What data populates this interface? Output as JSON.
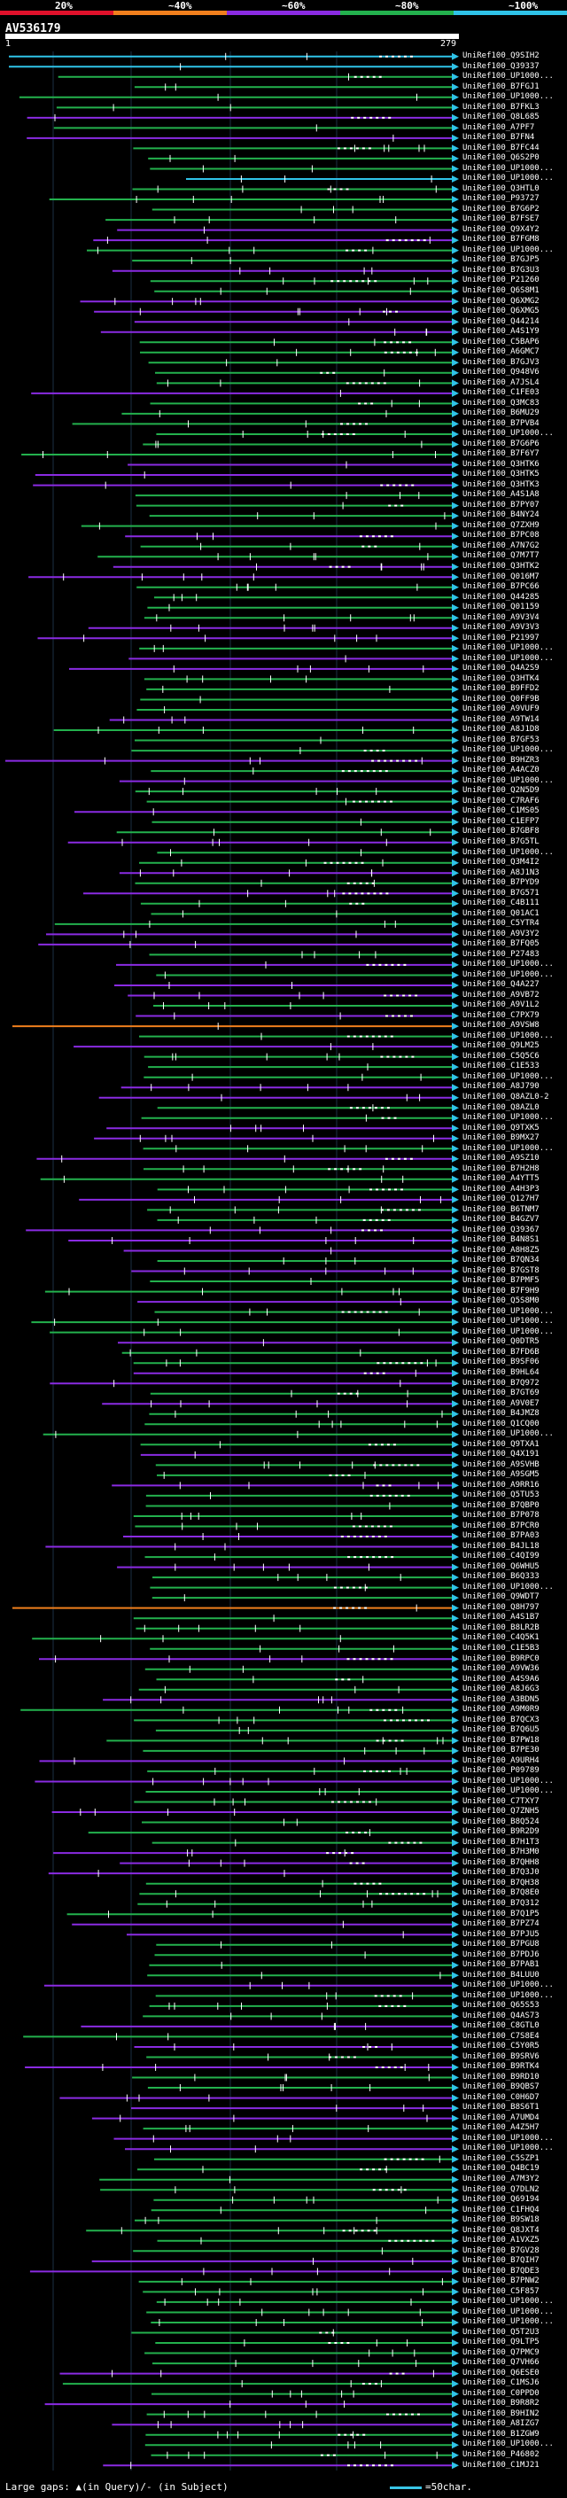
{
  "legend": {
    "labels": [
      "20%",
      "~40%",
      "~60%",
      "~80%",
      "~100%"
    ],
    "colors": [
      "#e0112b",
      "#f07f1d",
      "#8a2be2",
      "#23b14d",
      "#2fc3e8"
    ]
  },
  "query": {
    "id": "AV536179",
    "start": "1",
    "end": "279"
  },
  "footer": {
    "text": "Large gaps: ▲(in Query)/- (in Subject)",
    "scale": "=50char."
  },
  "chart_data": {
    "type": "blast-alignment",
    "title": "AV536179",
    "x_range": [
      1,
      279
    ],
    "hits": [
      "UniRef100_Q9SIH2",
      "UniRef100_Q39337",
      "UniRef100_UP1000...",
      "UniRef100_B7FGJ1",
      "UniRef100_UP1000...",
      "UniRef100_B7FKL3",
      "UniRef100_Q8L685",
      "UniRef100_A7PF7",
      "UniRef100_B7FN4",
      "UniRef100_B7FC44",
      "UniRef100_Q6S2P0",
      "UniRef100_UP1000...",
      "UniRef100_UP1000...",
      "UniRef100_Q3HTL0",
      "UniRef100_P93727",
      "UniRef100_B7G6P2",
      "UniRef100_B7FSE7",
      "UniRef100_Q9X4Y2",
      "UniRef100_B7FGM8",
      "UniRef100_UP1000...",
      "UniRef100_B7GJP5",
      "UniRef100_B7G3U3",
      "UniRef100_P21260",
      "UniRef100_Q6S8M1",
      "UniRef100_Q6XMG2",
      "UniRef100_Q6XMG5",
      "UniRef100_Q44214",
      "UniRef100_A4S1Y9",
      "UniRef100_C5BAP6",
      "UniRef100_A6GMC7",
      "UniRef100_B7GJV3",
      "UniRef100_Q948V6",
      "UniRef100_A7JSL4",
      "UniRef100_C1FE03",
      "UniRef100_Q3MC83",
      "UniRef100_B6MU29",
      "UniRef100_B7PVB4",
      "UniRef100_UP1000...",
      "UniRef100_B7G6P6",
      "UniRef100_B7F6Y7",
      "UniRef100_Q3HTK6",
      "UniRef100_Q3HTK5",
      "UniRef100_Q3HTK3",
      "UniRef100_A4S1A8",
      "UniRef100_B7PY07",
      "UniRef100_B4NY24",
      "UniRef100_Q7ZXH9",
      "UniRef100_B7PC08",
      "UniRef100_A7N7G2",
      "UniRef100_Q7M7T7",
      "UniRef100_Q3HTK2",
      "UniRef100_Q016M7",
      "UniRef100_B7PC66",
      "UniRef100_Q44285",
      "UniRef100_Q01159",
      "UniRef100_A9V3V4",
      "UniRef100_A9V3V3",
      "UniRef100_P21997",
      "UniRef100_UP1000...",
      "UniRef100_UP1000...",
      "UniRef100_Q4A2S9",
      "UniRef100_Q3HTK4",
      "UniRef100_B9FFD2",
      "UniRef100_Q0FF9B",
      "UniRef100_A9VUF9",
      "UniRef100_A9TW14",
      "UniRef100_A8J1D8",
      "UniRef100_B7GF53",
      "UniRef100_UP1000...",
      "UniRef100_B9HZR3",
      "UniRef100_A4ACZ0",
      "UniRef100_UP1000...",
      "UniRef100_Q2N5D9",
      "UniRef100_C7RAF6",
      "UniRef100_C1MS05",
      "UniRef100_C1EFP7",
      "UniRef100_B7GBF8",
      "UniRef100_B7G5TL",
      "UniRef100_UP1000...",
      "UniRef100_Q3M4I2",
      "UniRef100_A8J1N3",
      "UniRef100_B7PYD9",
      "UniRef100_B7G571",
      "UniRef100_C4B111",
      "UniRef100_Q01AC1",
      "UniRef100_C5YTR4",
      "UniRef100_A9V3Y2",
      "UniRef100_B7FQ05",
      "UniRef100_P27483",
      "UniRef100_UP1000...",
      "UniRef100_UP1000...",
      "UniRef100_Q4A227",
      "UniRef100_A9VB72",
      "UniRef100_A9V1L2",
      "UniRef100_C7PX79",
      "UniRef100_A9VSW8",
      "UniRef100_UP1000...",
      "UniRef100_Q9LM25",
      "UniRef100_C5Q5C6",
      "UniRef100_C1E533",
      "UniRef100_UP1000...",
      "UniRef100_A8J790",
      "UniRef100_Q8AZL0-2",
      "UniRef100_Q8AZL0",
      "UniRef100_UP1000...",
      "UniRef100_Q9TXK5",
      "UniRef100_B9MX27",
      "UniRef100_UP1000...",
      "UniRef100_A9SZ10",
      "UniRef100_B7H2H8",
      "UniRef100_A4YTT5",
      "UniRef100_A4H3P3",
      "UniRef100_Q127H7",
      "UniRef100_B6TNM7",
      "UniRef100_B4GZV7",
      "UniRef100_Q39367",
      "UniRef100_B4N8S1",
      "UniRef100_A8H8Z5",
      "UniRef100_B7QN34",
      "UniRef100_B7GST8",
      "UniRef100_B7PMF5",
      "UniRef100_B7F9H9",
      "UniRef100_Q5S8M0",
      "UniRef100_UP1000...",
      "UniRef100_UP1000...",
      "UniRef100_UP1000...",
      "UniRef100_Q0DTR5",
      "UniRef100_B7FD6B",
      "UniRef100_B9SF06",
      "UniRef100_B9HL64",
      "UniRef100_B7Q972",
      "UniRef100_B7GT69",
      "UniRef100_A9V0E7",
      "UniRef100_B4JMZ8",
      "UniRef100_Q1CQ00",
      "UniRef100_UP1000...",
      "UniRef100_Q9TXA1",
      "UniRef100_Q4X191",
      "UniRef100_A9SVHB",
      "UniRef100_A9SGM5",
      "UniRef100_A9RR16",
      "UniRef100_Q5TU53",
      "UniRef100_B7QBP0",
      "UniRef100_B7P078",
      "UniRef100_B7PCR0",
      "UniRef100_B7PA03",
      "UniRef100_B4JL18",
      "UniRef100_C4QI99",
      "UniRef100_Q6WHU5",
      "UniRef100_B6Q333",
      "UniRef100_UP1000...",
      "UniRef100_Q9WDT7",
      "UniRef100_Q8H797",
      "UniRef100_A4S1B7",
      "UniRef100_B8LR2B",
      "UniRef100_C4Q5K1",
      "UniRef100_C1E5B3",
      "UniRef100_B9RPC0",
      "UniRef100_A9VW36",
      "UniRef100_A4S9A6",
      "UniRef100_A8J6G3",
      "UniRef100_A3BDN5",
      "UniRef100_A9M0R9",
      "UniRef100_B7QCX3",
      "UniRef100_B7Q6U5",
      "UniRef100_B7PW18",
      "UniRef100_B7PE30",
      "UniRef100_A9URH4",
      "UniRef100_P09789",
      "UniRef100_UP1000...",
      "UniRef100_UP1000...",
      "UniRef100_C7TXY7",
      "UniRef100_Q7ZNH5",
      "UniRef100_B8Q524",
      "UniRef100_B9R2D9",
      "UniRef100_B7H1T3",
      "UniRef100_B7H3M0",
      "UniRef100_B7QHH8",
      "UniRef100_B7Q3J0",
      "UniRef100_B7QH38",
      "UniRef100_B7Q8E0",
      "UniRef100_B7Q312",
      "UniRef100_B7Q1P5",
      "UniRef100_B7PZ74",
      "UniRef100_B7PJU5",
      "UniRef100_B7PGU8",
      "UniRef100_B7PDJ6",
      "UniRef100_B7PAB1",
      "UniRef100_B4LUU0",
      "UniRef100_UP1000...",
      "UniRef100_UP1000...",
      "UniRef100_Q65S53",
      "UniRef100_Q4AS73",
      "UniRef100_C8GTL0",
      "UniRef100_C7S8E4",
      "UniRef100_C5Y0R5",
      "UniRef100_B9SRV6",
      "UniRef100_B9RTK4",
      "UniRef100_B9RD10",
      "UniRef100_B9QBS7",
      "UniRef100_C0H6D7",
      "UniRef100_B8S6T1",
      "UniRef100_A7UMD4",
      "UniRef100_A4Z5H7",
      "UniRef100_UP1000...",
      "UniRef100_UP1000...",
      "UniRef100_C5SZP1",
      "UniRef100_Q4BC19",
      "UniRef100_A7M3Y2",
      "UniRef100_Q7DLN2",
      "UniRef100_Q69194",
      "UniRef100_C1FHQ4",
      "UniRef100_B9SW18",
      "UniRef100_Q8JXT4",
      "UniRef100_A1VXZ5",
      "UniRef100_B7GV28",
      "UniRef100_B7QIH7",
      "UniRef100_B7QDE3",
      "UniRef100_B7PNW2",
      "UniRef100_C5F857",
      "UniRef100_UP1000...",
      "UniRef100_UP1000...",
      "UniRef100_UP1000...",
      "UniRef100_Q5T2U3",
      "UniRef100_Q9LTP5",
      "UniRef100_Q7PMC9",
      "UniRef100_Q7VH66",
      "UniRef100_Q6ESE0",
      "UniRef100_C1MSJ6",
      "UniRef100_C0PPD0",
      "UniRef100_B9R8R2",
      "UniRef100_B9HIN2",
      "UniRef100_A8IZG7",
      "UniRef100_B1ZGW9",
      "UniRef100_UP1000...",
      "UniRef100_P46802",
      "UniRef100_C1MJ21"
    ]
  }
}
